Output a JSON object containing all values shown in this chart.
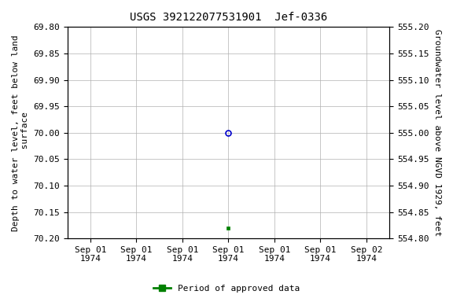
{
  "title": "USGS 392122077531901  Jef-0336",
  "left_ylabel": "Depth to water level, feet below land\n surface",
  "right_ylabel": "Groundwater level above NGVD 1929, feet",
  "ylim_left_top": 69.8,
  "ylim_left_bottom": 70.2,
  "ylim_right_top": 555.2,
  "ylim_right_bottom": 554.8,
  "left_yticks": [
    69.8,
    69.85,
    69.9,
    69.95,
    70.0,
    70.05,
    70.1,
    70.15,
    70.2
  ],
  "right_yticks": [
    555.2,
    555.15,
    555.1,
    555.05,
    555.0,
    554.95,
    554.9,
    554.85,
    554.8
  ],
  "blue_point_x": 3,
  "blue_point_y": 70.0,
  "green_point_x": 3,
  "green_point_y": 70.18,
  "x_tick_labels": [
    "Sep 01\n1974",
    "Sep 01\n1974",
    "Sep 01\n1974",
    "Sep 01\n1974",
    "Sep 01\n1974",
    "Sep 01\n1974",
    "Sep 02\n1974"
  ],
  "x_tick_positions": [
    0,
    1,
    2,
    3,
    4,
    5,
    6
  ],
  "xlim": [
    -0.5,
    6.5
  ],
  "blue_color": "#0000cc",
  "green_color": "#008000",
  "background_color": "#ffffff",
  "grid_color": "#b0b0b0",
  "title_fontsize": 10,
  "label_fontsize": 8,
  "tick_fontsize": 8,
  "legend_label": "Period of approved data"
}
